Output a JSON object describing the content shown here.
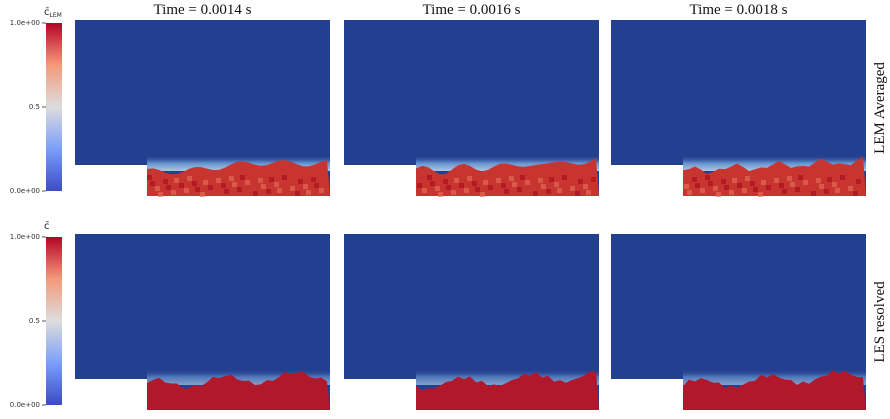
{
  "colorbars": [
    {
      "title": "c̄",
      "subscript": "LEM",
      "lim": [
        0,
        1
      ],
      "ticks": [
        {
          "value": 1,
          "label": "1.0e+00"
        },
        0.5,
        {
          "value": 0,
          "label": "0.0e+00"
        }
      ]
    },
    {
      "title": "c̄",
      "lim": [
        0,
        1
      ],
      "ticks": [
        {
          "value": 1,
          "label": "1.0e+00"
        },
        0.5,
        {
          "value": 0,
          "label": "0.0e+00"
        }
      ]
    }
  ],
  "columns": [
    "Time = 0.0014 s",
    "Time = 0.0016 s",
    "Time = 0.0018 s"
  ],
  "rows": [
    "LEM Averaged",
    "LES resolved"
  ]
}
